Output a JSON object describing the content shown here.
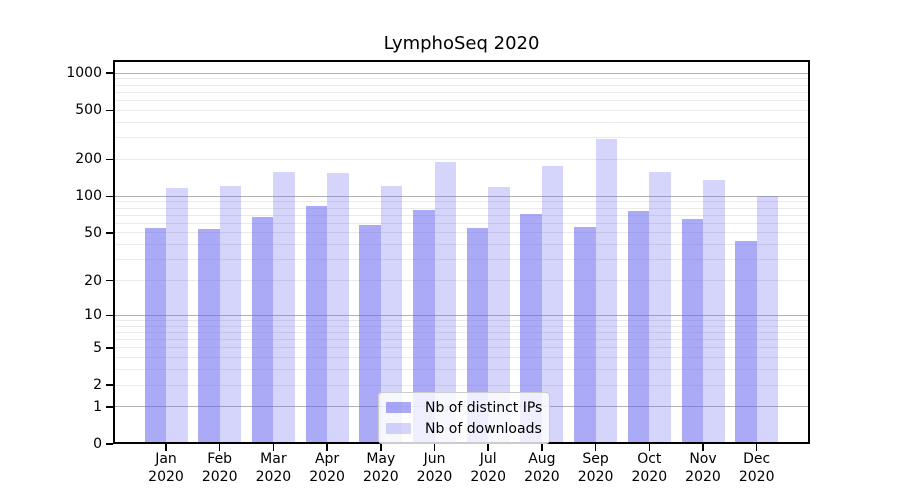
{
  "chart_data": {
    "type": "bar",
    "title": "LymphoSeq 2020",
    "categories": [
      "Jan 2020",
      "Feb 2020",
      "Mar 2020",
      "Apr 2020",
      "May 2020",
      "Jun 2020",
      "Jul 2020",
      "Aug 2020",
      "Sep 2020",
      "Oct 2020",
      "Nov 2020",
      "Dec 2020"
    ],
    "series": [
      {
        "name": "Nb of distinct IPs",
        "color": "rgba(100,100,240,0.55)",
        "values": [
          55,
          54,
          68,
          83,
          58,
          77,
          55,
          72,
          56,
          76,
          65,
          43
        ]
      },
      {
        "name": "Nb of downloads",
        "color": "rgba(100,100,240,0.27)",
        "values": [
          116,
          122,
          158,
          156,
          121,
          192,
          119,
          177,
          293,
          158,
          137,
          100
        ]
      }
    ],
    "xlabel": "",
    "ylabel": "",
    "yscale": "log1p",
    "yticks": [
      0,
      1,
      2,
      5,
      10,
      20,
      50,
      100,
      200,
      500,
      1000
    ],
    "ylim": [
      0,
      1280
    ],
    "grid": "horizontal, minor light + major dark at powers of 10",
    "legend_position": "inside lower center"
  },
  "colors": {
    "bar_base": "#6464f0",
    "grid_minor": "#eaeaea",
    "grid_major": "#b2b2b2",
    "axis": "#000000",
    "background": "#ffffff"
  }
}
